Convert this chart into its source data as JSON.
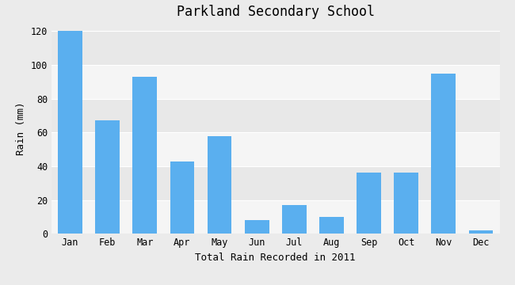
{
  "title": "Parkland Secondary School",
  "xlabel": "Total Rain Recorded in 2011",
  "ylabel": "Rain (mm)",
  "months": [
    "Jan",
    "Feb",
    "Mar",
    "Apr",
    "May",
    "Jun",
    "Jul",
    "Aug",
    "Sep",
    "Oct",
    "Nov",
    "Dec"
  ],
  "values": [
    120,
    67,
    93,
    43,
    58,
    8,
    17,
    10,
    36,
    36,
    95,
    2
  ],
  "bar_color": "#5aafef",
  "background_color": "#ebebeb",
  "band_colors": [
    "#f5f5f5",
    "#e8e8e8"
  ],
  "ylim": [
    0,
    125
  ],
  "yticks": [
    0,
    20,
    40,
    60,
    80,
    100,
    120
  ],
  "title_fontsize": 12,
  "label_fontsize": 9,
  "tick_fontsize": 8.5
}
